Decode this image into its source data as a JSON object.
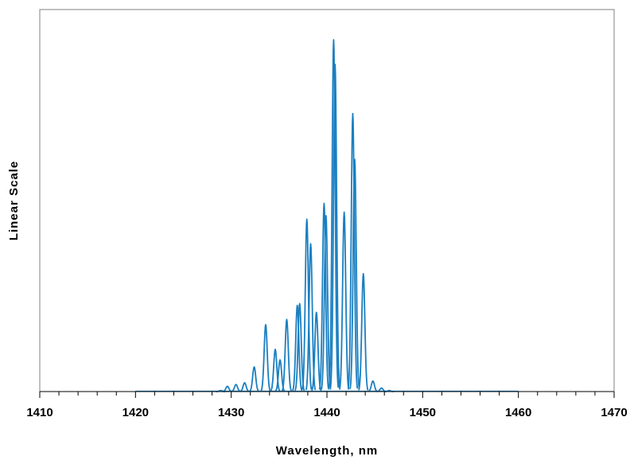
{
  "chart_data": {
    "type": "line",
    "title": "",
    "xlabel": "Wavelength, nm",
    "ylabel": "Linear Scale",
    "xlim": [
      1410,
      1470
    ],
    "ylim": [
      0,
      1
    ],
    "x_ticks": [
      1410,
      1420,
      1430,
      1440,
      1450,
      1460,
      1470
    ],
    "x_tick_labels": [
      "1410",
      "1420",
      "1430",
      "1440",
      "1450",
      "1460",
      "1470"
    ],
    "x_minor_step": 2,
    "y_tick_labels_shown": false,
    "grid": false,
    "legend": "none",
    "color": "#1a7fc1",
    "baseline": {
      "from": 1420,
      "to": 1460
    },
    "peak_width_nm": 0.16,
    "series": [
      {
        "peaks": [
          [
            1428.9,
            0.003
          ],
          [
            1429.6,
            0.015
          ],
          [
            1430.5,
            0.02
          ],
          [
            1431.4,
            0.025
          ],
          [
            1432.4,
            0.07
          ],
          [
            1433.6,
            0.19
          ],
          [
            1434.6,
            0.12
          ],
          [
            1435.1,
            0.09
          ],
          [
            1435.8,
            0.205
          ],
          [
            1436.9,
            0.245
          ],
          [
            1437.15,
            0.25
          ],
          [
            1437.9,
            0.49
          ],
          [
            1438.3,
            0.42
          ],
          [
            1438.9,
            0.225
          ],
          [
            1439.7,
            0.535
          ],
          [
            1439.9,
            0.5
          ],
          [
            1440.7,
            1.0
          ],
          [
            1440.85,
            0.93
          ],
          [
            1441.8,
            0.51
          ],
          [
            1442.7,
            0.79
          ],
          [
            1442.9,
            0.66
          ],
          [
            1443.8,
            0.335
          ],
          [
            1444.8,
            0.03
          ],
          [
            1445.7,
            0.01
          ],
          [
            1446.5,
            0.003
          ]
        ]
      }
    ]
  }
}
